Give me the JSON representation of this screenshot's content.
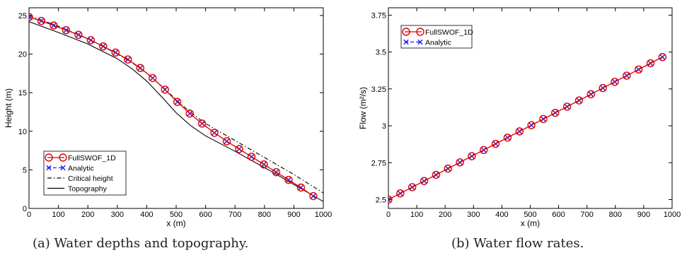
{
  "chart_data": [
    {
      "type": "line",
      "caption": "(a) Water depths and topography.",
      "xlabel": "x (m)",
      "ylabel": "Height (m)",
      "xlim": [
        0,
        1000
      ],
      "ylim": [
        0,
        26
      ],
      "xticks": [
        0,
        100,
        200,
        300,
        400,
        500,
        600,
        700,
        800,
        900,
        1000
      ],
      "yticks": [
        0,
        5,
        10,
        15,
        20,
        25
      ],
      "grid": false,
      "legend": {
        "placement": "bottom-left",
        "entries": [
          "FullSWOF_1D",
          "Analytic",
          "Critical height",
          "Topography"
        ]
      },
      "series": [
        {
          "name": "FullSWOF_1D",
          "style": "red-line-open-circles",
          "color": "#e00000",
          "x": [
            0,
            42,
            84,
            126,
            168,
            210,
            252,
            294,
            336,
            378,
            420,
            462,
            504,
            546,
            588,
            630,
            672,
            714,
            756,
            798,
            840,
            882,
            924,
            966
          ],
          "y": [
            24.8,
            24.3,
            23.7,
            23.1,
            22.5,
            21.8,
            21.0,
            20.2,
            19.3,
            18.2,
            16.9,
            15.4,
            13.8,
            12.3,
            11.0,
            9.8,
            8.7,
            7.7,
            6.7,
            5.7,
            4.7,
            3.7,
            2.7,
            1.6
          ]
        },
        {
          "name": "Analytic",
          "style": "blue-dashed-crosses",
          "color": "#1a1aff",
          "x": [
            0,
            42,
            84,
            126,
            168,
            210,
            252,
            294,
            336,
            378,
            420,
            462,
            504,
            546,
            588,
            630,
            672,
            714,
            756,
            798,
            840,
            882,
            924,
            966
          ],
          "y": [
            24.8,
            24.3,
            23.7,
            23.1,
            22.5,
            21.8,
            21.0,
            20.2,
            19.3,
            18.2,
            16.9,
            15.4,
            13.8,
            12.3,
            11.0,
            9.8,
            8.7,
            7.7,
            6.7,
            5.7,
            4.7,
            3.7,
            2.7,
            1.6
          ]
        },
        {
          "name": "Critical height",
          "style": "black-dash-dot",
          "color": "#000000",
          "x": [
            0,
            100,
            200,
            300,
            350,
            400,
            450,
            500,
            550,
            600,
            650,
            700,
            800,
            900,
            1000
          ],
          "y": [
            25.0,
            23.6,
            22.0,
            20.0,
            18.9,
            17.5,
            15.9,
            14.1,
            12.4,
            11.0,
            9.9,
            8.8,
            6.6,
            4.4,
            2.0
          ]
        },
        {
          "name": "Topography",
          "style": "black-solid",
          "color": "#000000",
          "x": [
            0,
            100,
            200,
            300,
            350,
            400,
            450,
            500,
            550,
            600,
            650,
            700,
            800,
            900,
            1000
          ],
          "y": [
            24.2,
            22.8,
            21.3,
            19.4,
            18.1,
            16.5,
            14.5,
            12.4,
            10.7,
            9.4,
            8.4,
            7.4,
            5.3,
            3.1,
            0.9
          ]
        }
      ]
    },
    {
      "type": "line",
      "caption": "(b) Water flow rates.",
      "xlabel": "x (m)",
      "ylabel": "Flow (m²/s)",
      "xlim": [
        0,
        1000
      ],
      "ylim": [
        2.44,
        3.8
      ],
      "xticks": [
        0,
        100,
        200,
        300,
        400,
        500,
        600,
        700,
        800,
        900,
        1000
      ],
      "yticks": [
        2.5,
        2.75,
        3,
        3.25,
        3.5,
        3.75
      ],
      "grid": false,
      "legend": {
        "placement": "top-left",
        "entries": [
          "FullSWOF_1D",
          "Analytic"
        ]
      },
      "series": [
        {
          "name": "FullSWOF_1D",
          "style": "red-line-open-circles",
          "color": "#e00000",
          "x": [
            0,
            42,
            84,
            126,
            168,
            210,
            252,
            294,
            336,
            378,
            420,
            462,
            504,
            546,
            588,
            630,
            672,
            714,
            756,
            798,
            840,
            882,
            924,
            966
          ],
          "y": [
            2.5,
            2.542,
            2.584,
            2.626,
            2.668,
            2.71,
            2.752,
            2.794,
            2.836,
            2.878,
            2.92,
            2.962,
            3.004,
            3.046,
            3.088,
            3.13,
            3.172,
            3.214,
            3.256,
            3.298,
            3.34,
            3.382,
            3.424,
            3.466
          ]
        },
        {
          "name": "Analytic",
          "style": "blue-dashed-crosses",
          "color": "#1a1aff",
          "x": [
            0,
            42,
            84,
            126,
            168,
            210,
            252,
            294,
            336,
            378,
            420,
            462,
            504,
            546,
            588,
            630,
            672,
            714,
            756,
            798,
            840,
            882,
            924,
            966
          ],
          "y": [
            2.5,
            2.542,
            2.584,
            2.626,
            2.668,
            2.71,
            2.752,
            2.794,
            2.836,
            2.878,
            2.92,
            2.962,
            3.004,
            3.046,
            3.088,
            3.13,
            3.172,
            3.214,
            3.256,
            3.298,
            3.34,
            3.382,
            3.424,
            3.466
          ]
        }
      ]
    }
  ]
}
